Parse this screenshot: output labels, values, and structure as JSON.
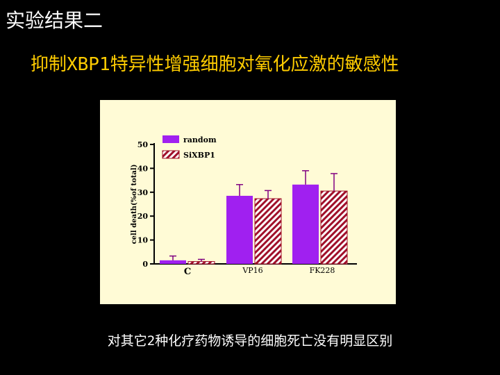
{
  "slide": {
    "heading": "实验结果二",
    "subtitle": "抑制XBP1特异性增强细胞对氧化应激的敏感性",
    "footer": "对其它2种化疗药物诱导的细胞死亡没有明显区别"
  },
  "colors": {
    "background": "#000000",
    "heading": "#ffffff",
    "subtitle": "#ffcc00",
    "chart_panel": "#fffbd6",
    "series_random": "#a020f0",
    "series_sixbp1_stripe": "#a0102a"
  },
  "chart_data": {
    "type": "bar",
    "title": "",
    "xlabel": "",
    "ylabel": "cell death(%of total)",
    "ylim": [
      0,
      50
    ],
    "yticks": [
      0,
      10,
      20,
      30,
      40,
      50
    ],
    "categories": [
      "C",
      "VP16",
      "FK228"
    ],
    "series": [
      {
        "name": "random",
        "pattern": "solid",
        "values": [
          1.5,
          28.5,
          33.2
        ],
        "errors": [
          1.8,
          4.7,
          5.8
        ]
      },
      {
        "name": "SiXBP1",
        "pattern": "diagonal-stripes",
        "values": [
          1.0,
          27.3,
          30.5
        ],
        "errors": [
          0.9,
          3.4,
          7.3
        ]
      }
    ],
    "legend_position": "top-left",
    "grid": false
  }
}
